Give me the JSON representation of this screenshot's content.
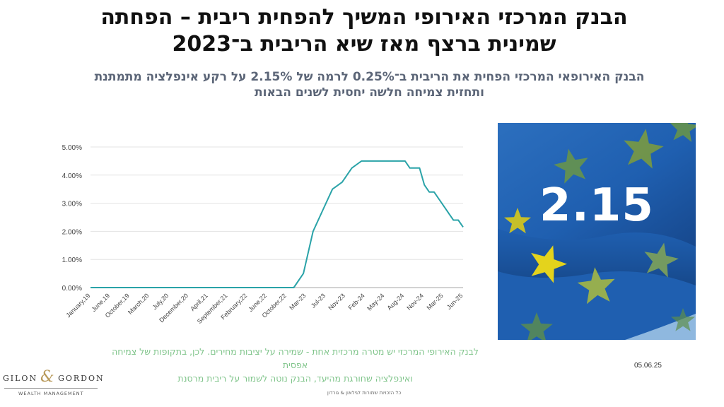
{
  "header": {
    "title_line1": "הבנק המרכזי האירופי המשיך להפחית ריבית – הפחתה",
    "title_line2": "שמינית ברצף מאז שיא הריבית ב־2023",
    "subtitle_line1": "הבנק האירופאי המרכזי הפחית את הריבית ב־0.25% לרמה של 2.15% על רקע אינפלציה מתמתנת",
    "subtitle_line2": "ותחזית צמיחה חלשה יחסית לשנים הבאות"
  },
  "photo": {
    "rate_label": "2.15",
    "colors": {
      "flag_blue": "#1f5fb0",
      "star_yellow": "#e4d31c",
      "sky": "#8fb8df"
    }
  },
  "note": {
    "line1": "לבנק האירופי המרכזי יש מטרה מרכזית אחת - שמירה על יציבות מחירים. לכן, בתקופות של צמיחה אפסית",
    "line2": "ואינפלציה שחורגת מהיעד, הבנק נוטה לשמור על ריבית מרסנת"
  },
  "date": "05.06.25",
  "footer": "כל הזכויות שמורות לגילאון & גורדון",
  "logo": {
    "left": "GILON",
    "amp": "&",
    "right": "GORDON",
    "sub": "WEALTH MANAGEMENT"
  },
  "chart_data": {
    "type": "line",
    "title": "",
    "xlabel": "",
    "ylabel": "",
    "ylim": [
      0,
      5
    ],
    "y_ticks": [
      "0.00%",
      "1.00%",
      "2.00%",
      "3.00%",
      "4.00%",
      "5.00%"
    ],
    "x_tick_labels": [
      "January,19",
      "June,19",
      "October,19",
      "March,20",
      "July,20",
      "December,20",
      "April,21",
      "September,21",
      "February,22",
      "June,22",
      "October,22",
      "Mar-23",
      "Jul-23",
      "Nov-23",
      "Feb-24",
      "May-24",
      "Aug-24",
      "Nov-24",
      "Mar-25",
      "Jun-25"
    ],
    "grid": "horizontal",
    "line_color": "#2aa3a8",
    "x_min": "2019-01",
    "x_max": "2025-06",
    "series": [
      {
        "points": [
          [
            "2019-01",
            0
          ],
          [
            "2022-07",
            0
          ],
          [
            "2022-09",
            0.5
          ],
          [
            "2022-11",
            2.0
          ],
          [
            "2023-01",
            2.75
          ],
          [
            "2023-03",
            3.5
          ],
          [
            "2023-05",
            3.75
          ],
          [
            "2023-07",
            4.25
          ],
          [
            "2023-09",
            4.5
          ],
          [
            "2024-06",
            4.5
          ],
          [
            "2024-07",
            4.25
          ],
          [
            "2024-09",
            4.25
          ],
          [
            "2024-10",
            3.65
          ],
          [
            "2024-11",
            3.4
          ],
          [
            "2024-12",
            3.4
          ],
          [
            "2025-02",
            2.9
          ],
          [
            "2025-04",
            2.4
          ],
          [
            "2025-05",
            2.4
          ],
          [
            "2025-06",
            2.15
          ]
        ]
      }
    ]
  }
}
